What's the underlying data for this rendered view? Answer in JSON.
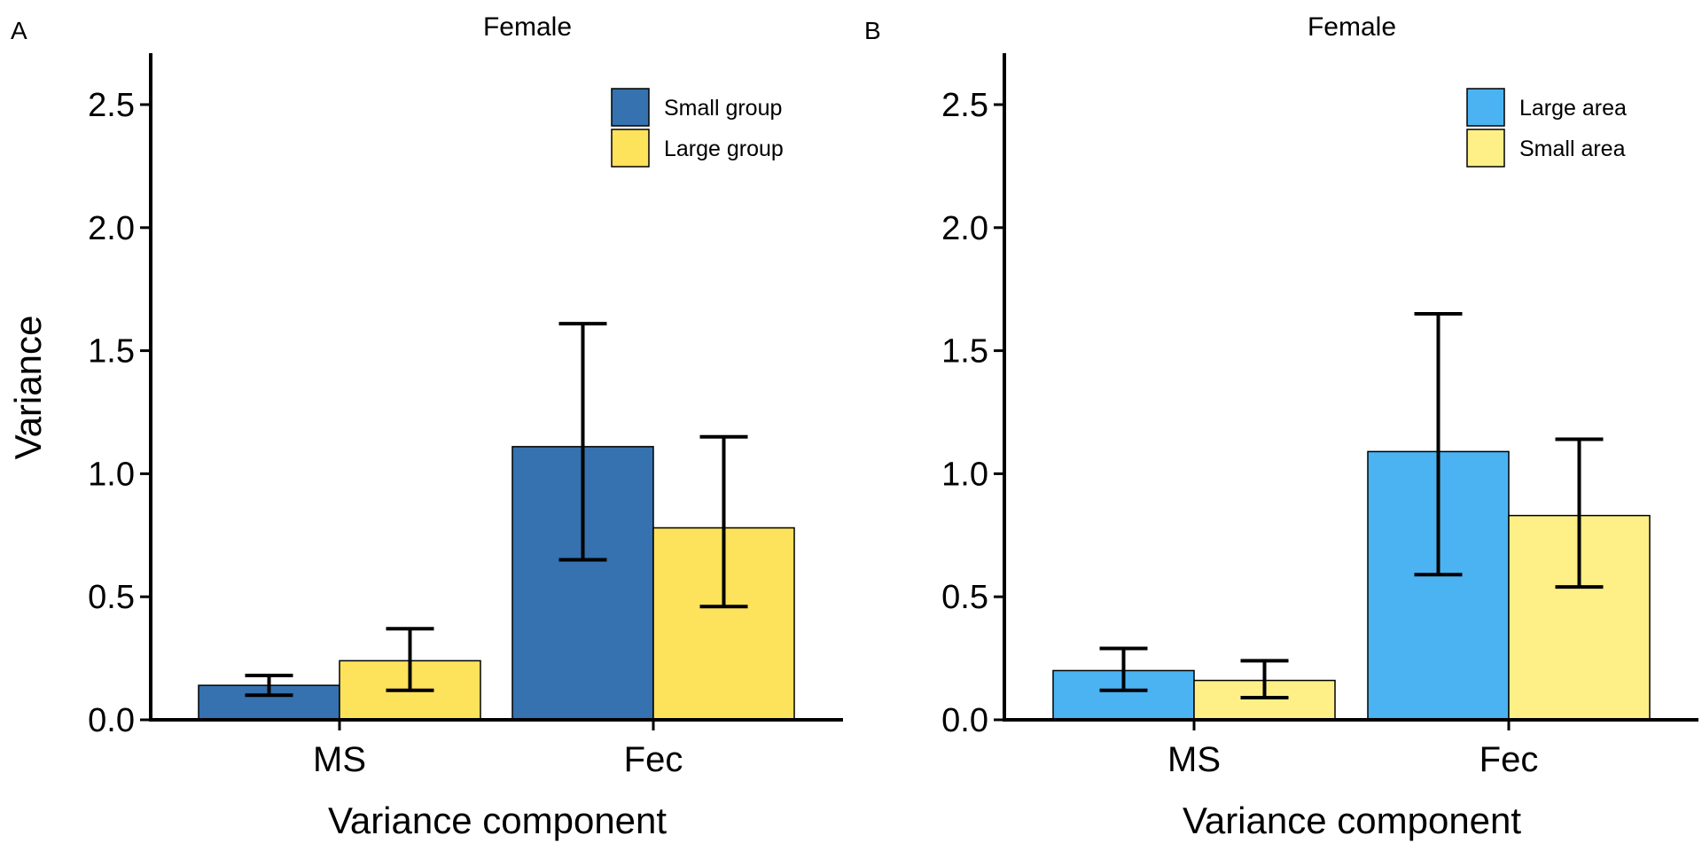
{
  "chart_data": [
    {
      "type": "bar",
      "panel": "A",
      "title": "Female",
      "xlabel": "Variance component",
      "ylabel": "Variance",
      "ylim": [
        0,
        2.7
      ],
      "yticks": [
        "0.0",
        "0.5",
        "1.0",
        "1.5",
        "2.0",
        "2.5"
      ],
      "categories": [
        "MS",
        "Fec"
      ],
      "legend_position": "top-right",
      "series": [
        {
          "name": "Small group",
          "color": "#3572AF",
          "values": [
            0.14,
            1.11
          ],
          "err_low": [
            0.1,
            0.65
          ],
          "err_high": [
            0.18,
            1.61
          ]
        },
        {
          "name": "Large group",
          "color": "#FDE25B",
          "values": [
            0.24,
            0.78
          ],
          "err_low": [
            0.12,
            0.46
          ],
          "err_high": [
            0.37,
            1.15
          ]
        }
      ]
    },
    {
      "type": "bar",
      "panel": "B",
      "title": "Female",
      "xlabel": "Variance component",
      "ylabel": "",
      "ylim": [
        0,
        2.7
      ],
      "yticks": [
        "0.0",
        "0.5",
        "1.0",
        "1.5",
        "2.0",
        "2.5"
      ],
      "categories": [
        "MS",
        "Fec"
      ],
      "legend_position": "top-right",
      "series": [
        {
          "name": "Large area",
          "color": "#4BB3F2",
          "values": [
            0.2,
            1.09
          ],
          "err_low": [
            0.12,
            0.59
          ],
          "err_high": [
            0.29,
            1.65
          ]
        },
        {
          "name": "Small area",
          "color": "#FEF087",
          "values": [
            0.16,
            0.83
          ],
          "err_low": [
            0.09,
            0.54
          ],
          "err_high": [
            0.24,
            1.14
          ]
        }
      ]
    }
  ]
}
